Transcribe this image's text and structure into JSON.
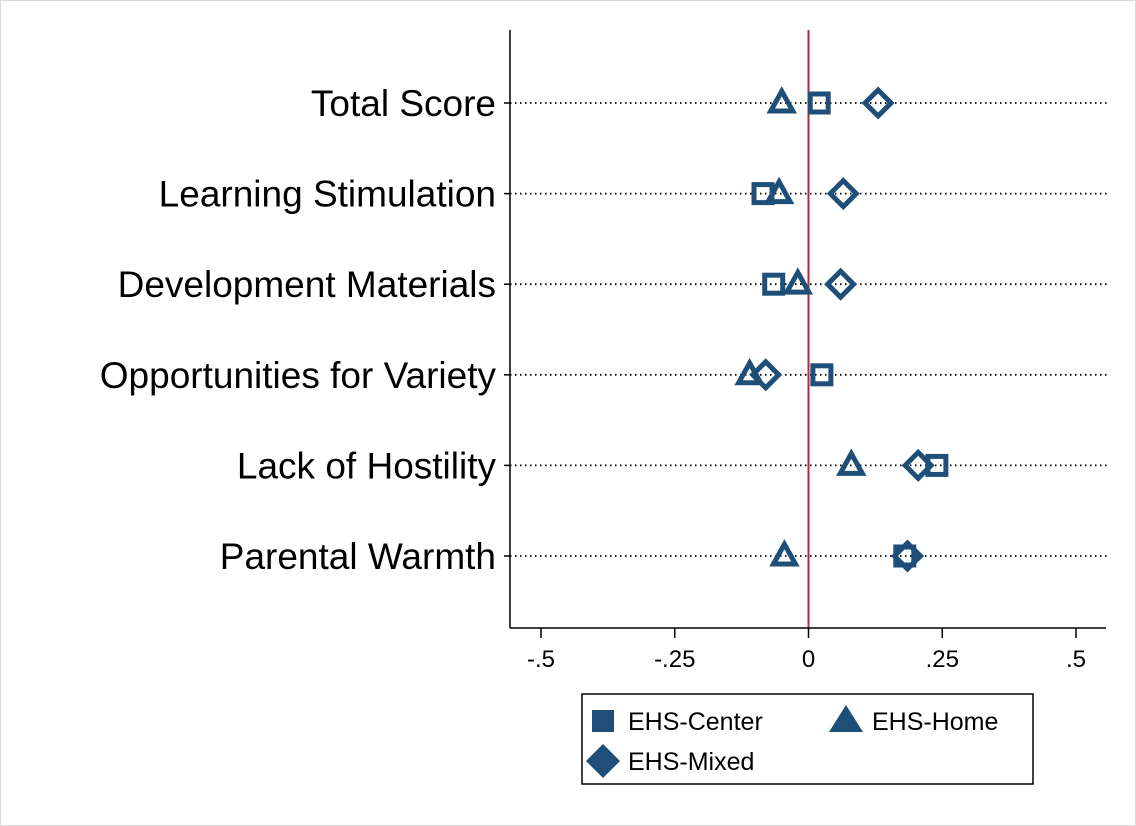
{
  "chart_data": {
    "type": "scatter",
    "orientation": "horizontal-dot-plot",
    "title": "",
    "xlabel": "",
    "ylabel": "",
    "xlim": [
      -0.555,
      0.555
    ],
    "xticks": [
      {
        "value": -0.5,
        "label": "-.5"
      },
      {
        "value": -0.25,
        "label": "-.25"
      },
      {
        "value": 0,
        "label": "0"
      },
      {
        "value": 0.25,
        "label": ".25"
      },
      {
        "value": 0.5,
        "label": ".5"
      }
    ],
    "reference_line": {
      "value": 0,
      "color": "#b22a3a"
    },
    "categories": [
      "Total Score",
      "Learning Stimulation",
      "Development Materials",
      "Opportunities for Variety",
      "Lack of Hostility",
      "Parental Warmth"
    ],
    "grid": "dotted horizontal lines at each category",
    "marker_color": "#1f4e79",
    "series": [
      {
        "name": "EHS-Center",
        "marker": "square",
        "values": [
          0.02,
          -0.085,
          -0.065,
          0.025,
          0.24,
          0.18
        ]
      },
      {
        "name": "EHS-Home",
        "marker": "triangle",
        "values": [
          -0.05,
          -0.055,
          -0.02,
          -0.11,
          0.08,
          -0.045
        ]
      },
      {
        "name": "EHS-Mixed",
        "marker": "diamond",
        "values": [
          0.13,
          0.065,
          0.06,
          -0.08,
          0.205,
          0.185
        ]
      }
    ],
    "legend": {
      "placement": "bottom"
    }
  }
}
